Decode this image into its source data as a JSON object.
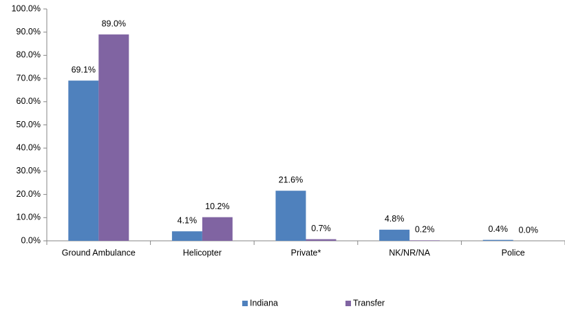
{
  "chart_data": {
    "type": "bar",
    "categories": [
      "Ground Ambulance",
      "Helicopter",
      "Private*",
      "NK/NR/NA",
      "Police"
    ],
    "series": [
      {
        "name": "Indiana",
        "color": "#4f81bd",
        "values": [
          69.1,
          4.1,
          21.6,
          4.8,
          0.4
        ],
        "value_labels": [
          "69.1%",
          "4.1%",
          "21.6%",
          "4.8%",
          "0.4%"
        ]
      },
      {
        "name": "Transfer",
        "color": "#8064a2",
        "values": [
          89.0,
          10.2,
          0.7,
          0.2,
          0.0
        ],
        "value_labels": [
          "89.0%",
          "10.2%",
          "0.7%",
          "0.2%",
          "0.0%"
        ]
      }
    ],
    "ylim": [
      0,
      100
    ],
    "yticks": [
      {
        "value": 0,
        "label": "0.0%"
      },
      {
        "value": 10,
        "label": "10.0%"
      },
      {
        "value": 20,
        "label": "20.0%"
      },
      {
        "value": 30,
        "label": "30.0%"
      },
      {
        "value": 40,
        "label": "40.0%"
      },
      {
        "value": 50,
        "label": "50.0%"
      },
      {
        "value": 60,
        "label": "60.0%"
      },
      {
        "value": 70,
        "label": "70.0%"
      },
      {
        "value": 80,
        "label": "80.0%"
      },
      {
        "value": 90,
        "label": "90.0%"
      },
      {
        "value": 100,
        "label": "100.0%"
      }
    ],
    "grid": false,
    "legend": "bottom"
  }
}
